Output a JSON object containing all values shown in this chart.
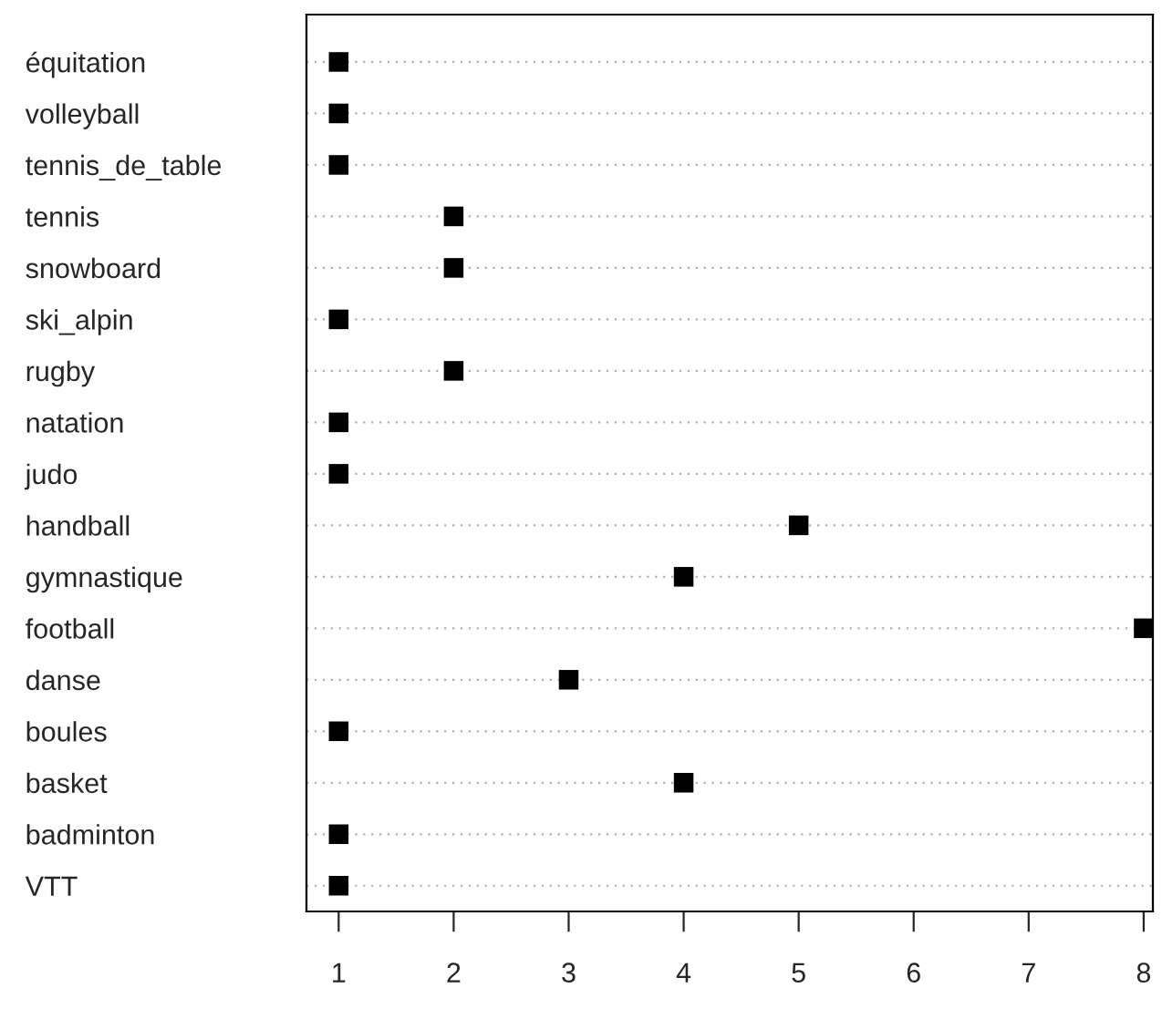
{
  "chart_data": {
    "type": "scatter",
    "orientation": "horizontal",
    "categories": [
      "équitation",
      "volleyball",
      "tennis_de_table",
      "tennis",
      "snowboard",
      "ski_alpin",
      "rugby",
      "natation",
      "judo",
      "handball",
      "gymnastique",
      "football",
      "danse",
      "boules",
      "basket",
      "badminton",
      "VTT"
    ],
    "values": [
      1,
      1,
      1,
      2,
      2,
      1,
      2,
      1,
      1,
      5,
      4,
      8,
      3,
      1,
      4,
      1,
      1
    ],
    "color": "#000000",
    "marker": "square",
    "grid": "y",
    "xlim": [
      0.72,
      8.08
    ],
    "xticks": [
      1,
      2,
      3,
      4,
      5,
      6,
      7,
      8
    ]
  }
}
